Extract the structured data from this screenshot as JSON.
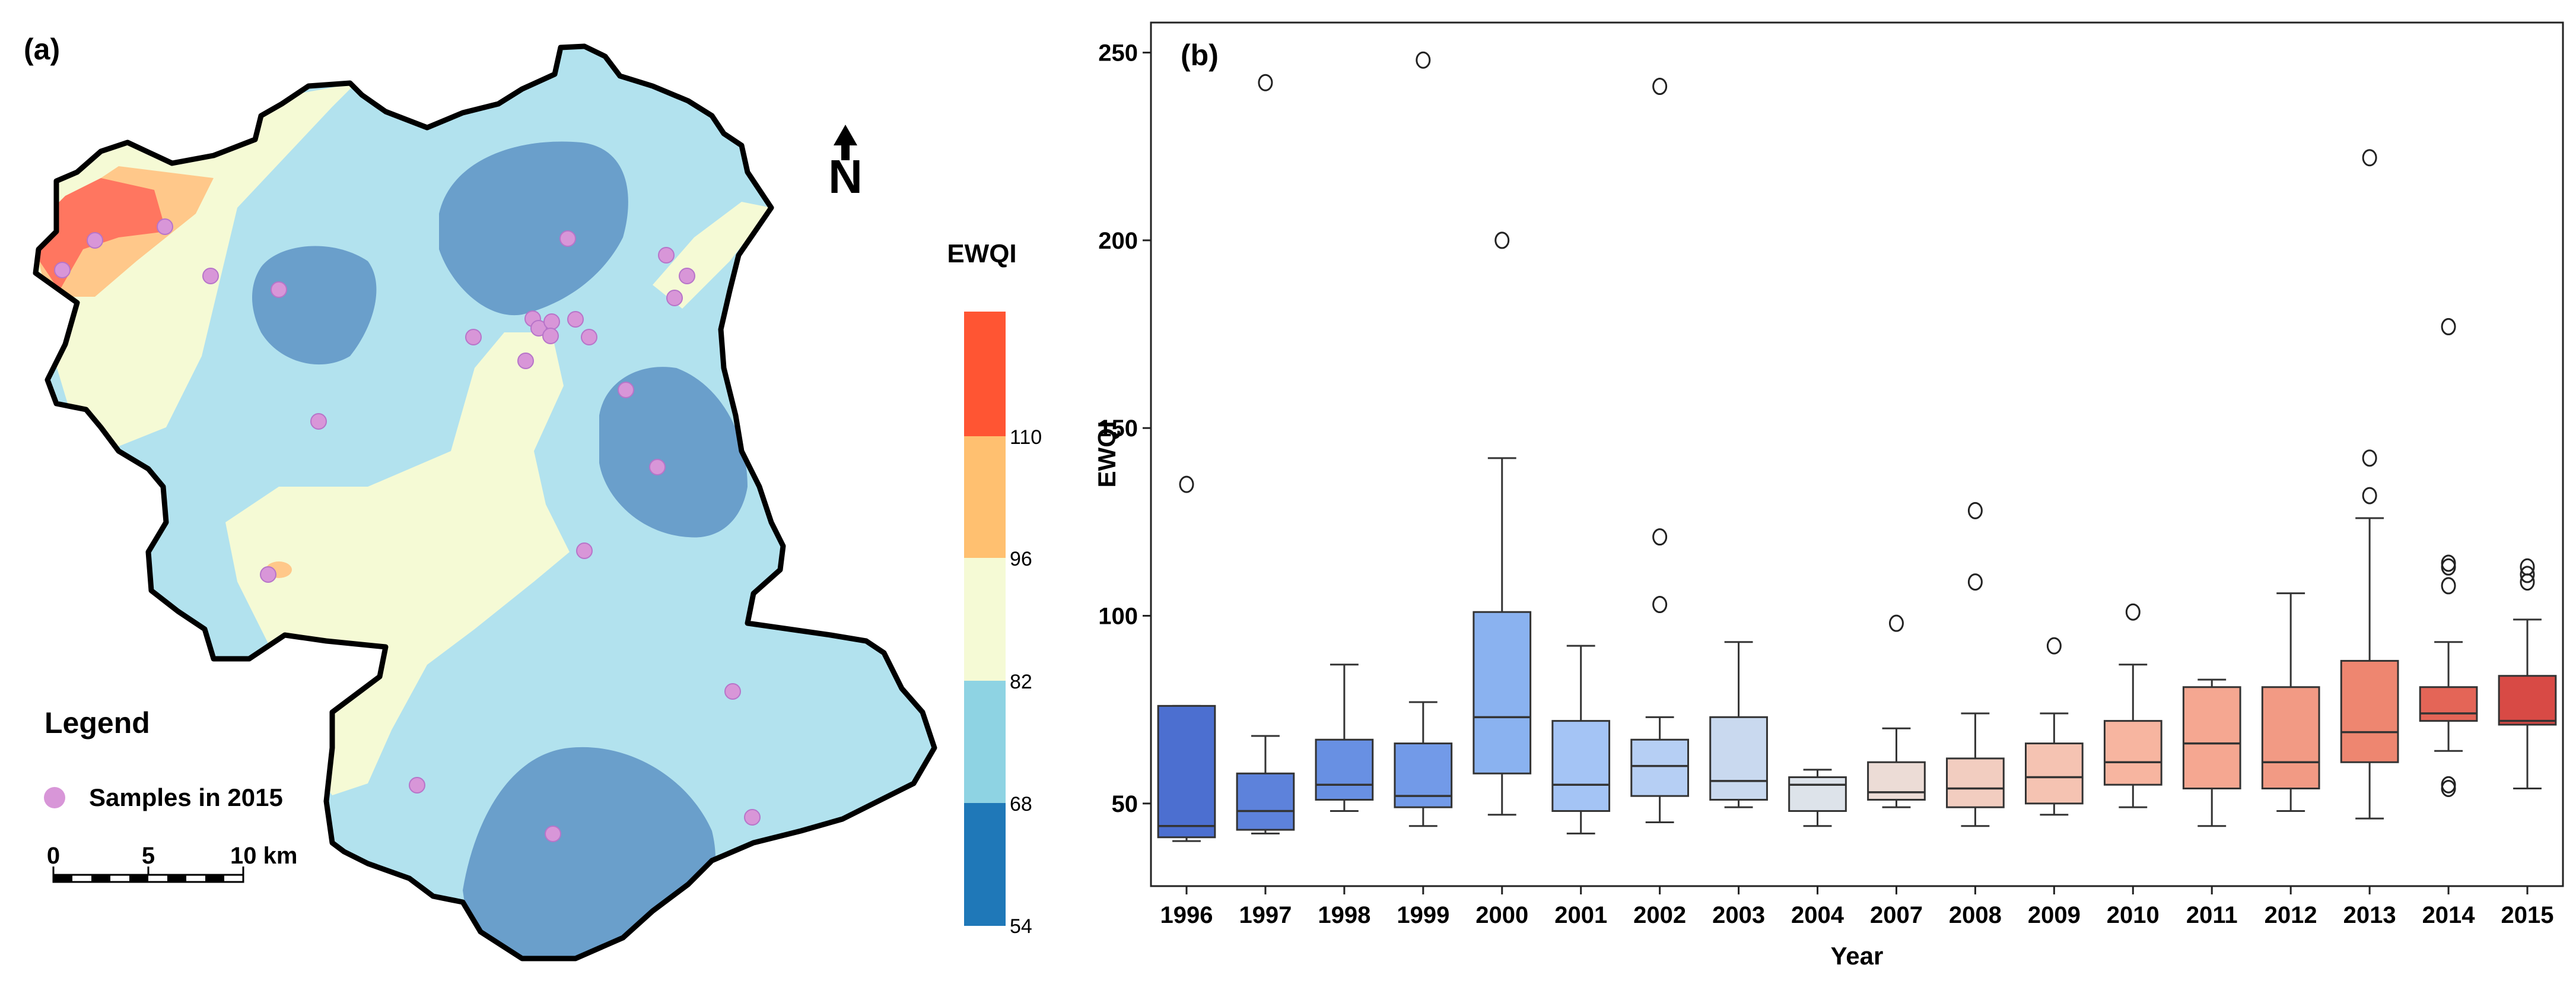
{
  "panel_a": {
    "label": "(a)",
    "north_label": "N",
    "colorbar": {
      "title": "EWQI",
      "ticks": [
        "110",
        "96",
        "82",
        "68",
        "54"
      ],
      "bands": [
        {
          "range": "110+",
          "color": "#ff5533"
        },
        {
          "range": "96-110",
          "color": "#ffc070"
        },
        {
          "range": "82-96",
          "color": "#f5fad5"
        },
        {
          "range": "68-82",
          "color": "#8ed3e3"
        },
        {
          "range": "54-68",
          "color": "#1f78b8"
        }
      ]
    },
    "legend": {
      "title": "Legend",
      "sample_label": "Samples in 2015",
      "sample_color": "#d896d8"
    },
    "scale_bar": {
      "ticks": [
        "0",
        "5",
        "10 km"
      ]
    },
    "map_colors": {
      "background": "#b2e2ee",
      "high": "#6a9fcb",
      "mid": "#f5fad5",
      "orange": "#ffc88a",
      "red": "#ff7660",
      "border": "#000000"
    }
  },
  "panel_b": {
    "label": "(b)",
    "chart_data": {
      "type": "box",
      "ylabel": "EWQI",
      "xlabel": "Year",
      "ylim": [
        28,
        258
      ],
      "yticks": [
        50,
        100,
        150,
        200,
        250
      ],
      "categories": [
        "1996",
        "1997",
        "1998",
        "1999",
        "2000",
        "2001",
        "2002",
        "2003",
        "2004",
        "2007",
        "2008",
        "2009",
        "2010",
        "2011",
        "2012",
        "2013",
        "2014",
        "2015"
      ],
      "boxes": [
        {
          "year": "1996",
          "min": 40,
          "q1": 41,
          "median": 44,
          "q3": 76,
          "max": 76,
          "outliers": [
            135
          ],
          "color": "#4c6fd0"
        },
        {
          "year": "1997",
          "min": 42,
          "q1": 43,
          "median": 48,
          "q3": 58,
          "max": 68,
          "outliers": [
            242
          ],
          "color": "#5d82db"
        },
        {
          "year": "1998",
          "min": 48,
          "q1": 51,
          "median": 55,
          "q3": 67,
          "max": 87,
          "outliers": [],
          "color": "#6890e3"
        },
        {
          "year": "1999",
          "min": 44,
          "q1": 49,
          "median": 52,
          "q3": 66,
          "max": 77,
          "outliers": [
            248
          ],
          "color": "#729ae8"
        },
        {
          "year": "2000",
          "min": 47,
          "q1": 58,
          "median": 73,
          "q3": 101,
          "max": 142,
          "outliers": [
            200
          ],
          "color": "#8ab2f0"
        },
        {
          "year": "2001",
          "min": 42,
          "q1": 48,
          "median": 55,
          "q3": 72,
          "max": 92,
          "outliers": [],
          "color": "#a4c4f5"
        },
        {
          "year": "2002",
          "min": 45,
          "q1": 52,
          "median": 60,
          "q3": 67,
          "max": 73,
          "outliers": [
            103,
            121,
            241
          ],
          "color": "#b6cff4"
        },
        {
          "year": "2003",
          "min": 49,
          "q1": 51,
          "median": 56,
          "q3": 73,
          "max": 93,
          "outliers": [],
          "color": "#c9d9ef"
        },
        {
          "year": "2004",
          "min": 44,
          "q1": 48,
          "median": 55,
          "q3": 57,
          "max": 59,
          "outliers": [],
          "color": "#dde3ea"
        },
        {
          "year": "2007",
          "min": 49,
          "q1": 51,
          "median": 53,
          "q3": 61,
          "max": 70,
          "outliers": [
            98
          ],
          "color": "#ecdcd6"
        },
        {
          "year": "2008",
          "min": 44,
          "q1": 49,
          "median": 54,
          "q3": 62,
          "max": 74,
          "outliers": [
            109,
            128
          ],
          "color": "#f2cdc0"
        },
        {
          "year": "2009",
          "min": 47,
          "q1": 50,
          "median": 57,
          "q3": 66,
          "max": 74,
          "outliers": [
            92
          ],
          "color": "#f5c3b2"
        },
        {
          "year": "2010",
          "min": 49,
          "q1": 55,
          "median": 61,
          "q3": 72,
          "max": 87,
          "outliers": [
            101
          ],
          "color": "#f7b5a0"
        },
        {
          "year": "2011",
          "min": 44,
          "q1": 54,
          "median": 66,
          "q3": 81,
          "max": 83,
          "outliers": [],
          "color": "#f5a791"
        },
        {
          "year": "2012",
          "min": 48,
          "q1": 54,
          "median": 61,
          "q3": 81,
          "max": 106,
          "outliers": [],
          "color": "#f29a84"
        },
        {
          "year": "2013",
          "min": 46,
          "q1": 61,
          "median": 69,
          "q3": 88,
          "max": 126,
          "outliers": [
            132,
            142,
            222
          ],
          "color": "#ee8670"
        },
        {
          "year": "2014",
          "min": 64,
          "q1": 72,
          "median": 74,
          "q3": 81,
          "max": 93,
          "outliers": [
            54,
            55,
            108,
            113,
            114,
            177
          ],
          "color": "#e46557"
        },
        {
          "year": "2015",
          "min": 54,
          "q1": 71,
          "median": 72,
          "q3": 84,
          "max": 99,
          "outliers": [
            109,
            111,
            113
          ],
          "color": "#d84a45"
        }
      ]
    }
  }
}
